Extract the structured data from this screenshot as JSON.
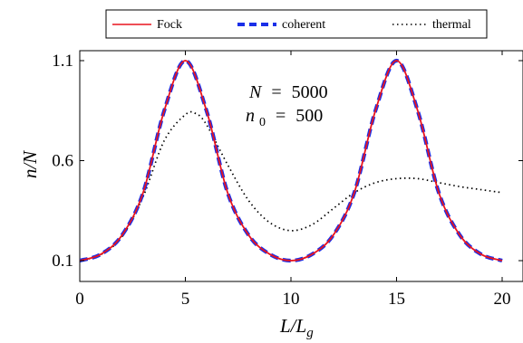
{
  "chart_data": {
    "type": "line",
    "xlabel": "L/L_g",
    "ylabel": "n/N",
    "xlim": [
      0,
      20
    ],
    "ylim": [
      0.1,
      1.1
    ],
    "x_ticks": [
      "0",
      "5",
      "10",
      "15",
      "20"
    ],
    "y_ticks": [
      "0.1",
      "0.6",
      "1.1"
    ],
    "legend_position": "top (above plot)",
    "grid": false,
    "annotations": [
      {
        "var": "N",
        "op": "=",
        "value": "5000"
      },
      {
        "var": "n",
        "sub": "0",
        "op": "=",
        "value": "500"
      }
    ],
    "series": [
      {
        "name": "Fock",
        "color": "#e8141e",
        "style": "solid",
        "x": [
          0,
          1,
          2,
          3,
          4,
          5,
          6,
          7,
          8,
          9,
          10,
          11,
          12,
          13,
          14,
          15,
          16,
          17,
          18,
          19,
          20
        ],
        "y": [
          0.1,
          0.132,
          0.227,
          0.44,
          0.85,
          1.1,
          0.85,
          0.44,
          0.227,
          0.132,
          0.1,
          0.132,
          0.227,
          0.44,
          0.85,
          1.1,
          0.85,
          0.44,
          0.227,
          0.132,
          0.1
        ]
      },
      {
        "name": "coherent",
        "color": "#1a2fe8",
        "style": "dashed",
        "x": [
          0,
          1,
          2,
          3,
          4,
          5,
          6,
          7,
          8,
          9,
          10,
          11,
          12,
          13,
          14,
          15,
          16,
          17,
          18,
          19,
          20
        ],
        "y": [
          0.1,
          0.132,
          0.227,
          0.44,
          0.85,
          1.1,
          0.85,
          0.44,
          0.227,
          0.132,
          0.1,
          0.132,
          0.227,
          0.44,
          0.85,
          1.1,
          0.85,
          0.44,
          0.227,
          0.132,
          0.1
        ]
      },
      {
        "name": "thermal",
        "color": "#000000",
        "style": "dotted",
        "x": [
          0,
          1,
          2,
          3,
          4,
          5,
          5.5,
          6,
          7,
          8,
          9,
          10,
          11,
          12,
          13,
          14,
          15,
          16,
          17,
          18,
          19,
          20
        ],
        "y": [
          0.1,
          0.13,
          0.22,
          0.42,
          0.7,
          0.83,
          0.835,
          0.78,
          0.58,
          0.4,
          0.29,
          0.25,
          0.28,
          0.36,
          0.44,
          0.49,
          0.51,
          0.51,
          0.49,
          0.47,
          0.455,
          0.44
        ]
      }
    ]
  }
}
